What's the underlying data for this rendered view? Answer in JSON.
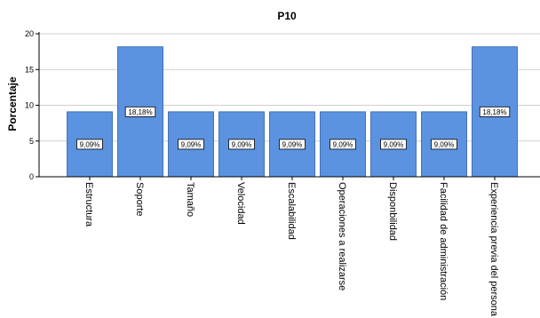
{
  "chart_data": {
    "type": "bar",
    "title": "P10",
    "ylabel": "Porcentaje",
    "xlabel": "",
    "categories": [
      "Estructura",
      "Soporte",
      "Tamaño",
      "Velocidad",
      "Escalabilidad",
      "Operaciones a realizarse",
      "Disponbilidad",
      "Facilidad de administración",
      "Experiencia previa del persona"
    ],
    "values": [
      9.09,
      18.18,
      9.09,
      9.09,
      9.09,
      9.09,
      9.09,
      9.09,
      18.18
    ],
    "data_labels": [
      "9,09%",
      "18,18%",
      "9,09%",
      "9,09%",
      "9,09%",
      "9,09%",
      "9,09%",
      "9,09%",
      "18,18%"
    ],
    "yticks": [
      0,
      5,
      10,
      15,
      20
    ],
    "ylim": [
      0,
      21
    ],
    "grid": true,
    "bar_color": "#5b93e0",
    "bar_edge_color": "#2b5ea8"
  }
}
